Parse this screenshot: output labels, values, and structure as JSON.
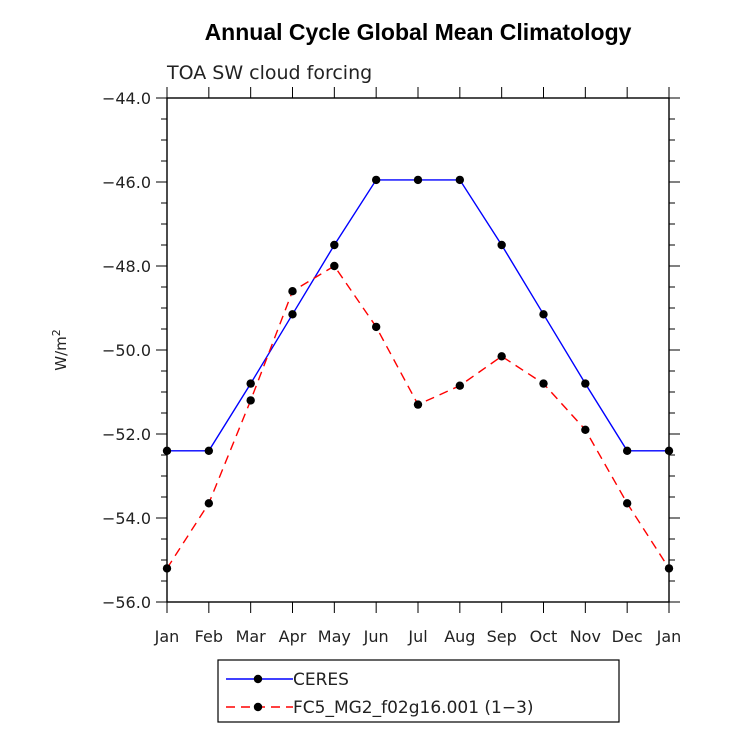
{
  "chart_data": {
    "type": "line",
    "title": "Annual Cycle Global Mean Climatology",
    "subtitle": "TOA SW cloud forcing",
    "ylabel_base": "W/m",
    "ylabel_sup": "2",
    "xlabel": "",
    "categories": [
      "Jan",
      "Feb",
      "Mar",
      "Apr",
      "May",
      "Jun",
      "Jul",
      "Aug",
      "Sep",
      "Oct",
      "Nov",
      "Dec",
      "Jan"
    ],
    "ylim": [
      -56.0,
      -44.0
    ],
    "yticks": [
      -56.0,
      -54.0,
      -52.0,
      -50.0,
      -48.0,
      -46.0,
      -44.0
    ],
    "ytick_labels": [
      "−56.0",
      "−54.0",
      "−52.0",
      "−50.0",
      "−48.0",
      "−46.0",
      "−44.0"
    ],
    "grid": false,
    "legend_position": "bottom",
    "series": [
      {
        "name": "CERES",
        "color": "#0000ff",
        "dashed": false,
        "values": [
          -52.4,
          -52.4,
          -50.8,
          -49.15,
          -47.5,
          -45.95,
          -45.95,
          -45.95,
          -47.5,
          -49.15,
          -50.8,
          -52.4,
          -52.4
        ]
      },
      {
        "name": "FC5_MG2_f02g16.001 (1−3)",
        "color": "#ff0000",
        "dashed": true,
        "values": [
          -55.2,
          -53.65,
          -51.2,
          -48.6,
          -48.0,
          -49.45,
          -51.3,
          -50.85,
          -50.15,
          -50.8,
          -51.9,
          -53.65,
          -55.2
        ]
      }
    ]
  }
}
